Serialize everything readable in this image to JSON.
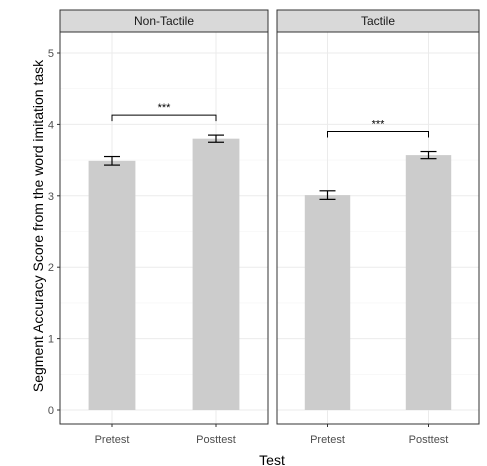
{
  "chart_data": {
    "type": "bar",
    "ylabel": "Segment Accuracy Score from the word imitation task",
    "xlabel": "Test",
    "ylim": [
      0,
      5.3
    ],
    "yticks": [
      0,
      1,
      2,
      3,
      4,
      5
    ],
    "grid": true,
    "categories": [
      "Pretest",
      "Posttest"
    ],
    "panels": [
      {
        "label": "Non-Tactile",
        "values": [
          3.49,
          3.8
        ],
        "error": [
          0.06,
          0.05
        ],
        "significance": "***"
      },
      {
        "label": "Tactile",
        "values": [
          3.01,
          3.57
        ],
        "error": [
          0.06,
          0.05
        ],
        "significance": "***"
      }
    ],
    "colors": {
      "bar": "#cccccc",
      "strip": "#d9d9d9"
    }
  }
}
